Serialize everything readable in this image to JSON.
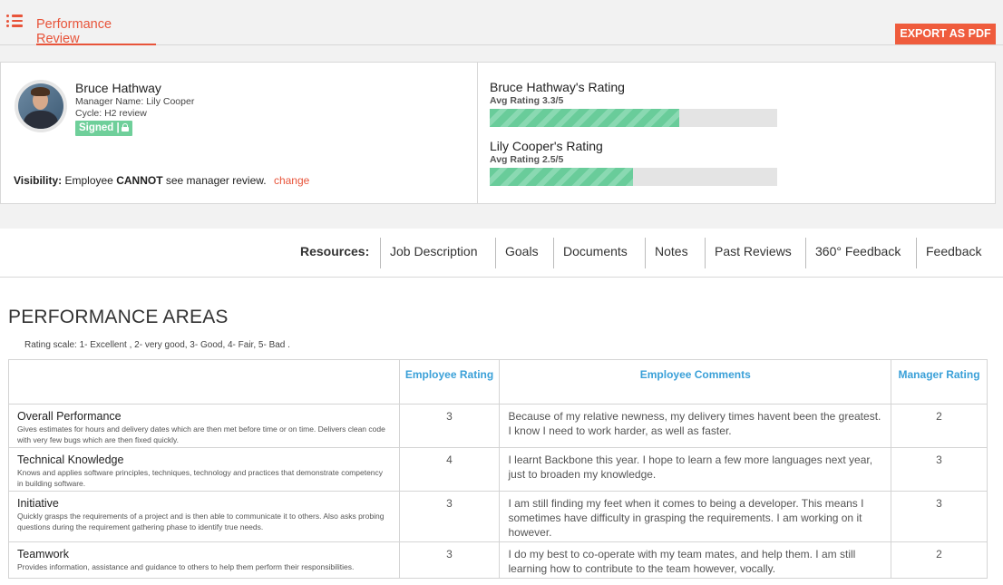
{
  "header": {
    "tab_title": "Performance Review",
    "export_label": "EXPORT AS PDF"
  },
  "profile": {
    "name": "Bruce Hathway",
    "manager": "Manager Name: Lily Cooper",
    "cycle": "Cycle: H2 review",
    "signed_label": "Signed |",
    "visibility_label": "Visibility:",
    "visibility_text_1": "Employee",
    "visibility_strong": "CANNOT",
    "visibility_text_2": "see manager review.",
    "change_label": "change"
  },
  "ratings": [
    {
      "title": "Bruce Hathway's Rating",
      "avg_label": "Avg Rating 3.3/5",
      "value": 3.3,
      "max": 5
    },
    {
      "title": "Lily Cooper's Rating",
      "avg_label": "Avg Rating 2.5/5",
      "value": 2.5,
      "max": 5
    }
  ],
  "resources": {
    "label": "Resources:",
    "items": [
      "Job Description",
      "Goals",
      "Documents",
      "Notes",
      "Past Reviews",
      "360° Feedback",
      "Feedback"
    ]
  },
  "performance": {
    "title": "PERFORMANCE AREAS",
    "scale_note": "Rating scale: 1- Excellent , 2- very good, 3- Good, 4- Fair, 5- Bad .",
    "columns": {
      "employee_rating": "Employee Rating",
      "employee_comments": "Employee Comments",
      "manager_rating": "Manager Rating"
    },
    "rows": [
      {
        "name": "Overall Performance",
        "desc": "Gives estimates for hours and delivery dates which are then met before time or on time. Delivers clean code with very few bugs which are then fixed quickly.",
        "employee_rating": "3",
        "comment": "Because of my relative newness, my delivery times havent been the greatest. I know I need to work harder, as well as faster.",
        "manager_rating": "2"
      },
      {
        "name": "Technical Knowledge",
        "desc": "Knows and applies software principles, techniques, technology and practices that demonstrate competency in building software.",
        "employee_rating": "4",
        "comment": "I learnt Backbone this year. I hope to learn a few more languages next year, just to broaden my knowledge.",
        "manager_rating": "3"
      },
      {
        "name": "Initiative",
        "desc": "Quickly grasps the requirements of a project and is then able to communicate it to others. Also asks probing questions during the requirement gathering phase to identify true needs.",
        "employee_rating": "3",
        "comment": "I am still finding my feet when it comes to being a developer. This means I sometimes have difficulty in grasping the requirements. I am working on it however.",
        "manager_rating": "3"
      },
      {
        "name": "Teamwork",
        "desc": "Provides information, assistance and guidance to others to help them perform their responsibilities.",
        "employee_rating": "3",
        "comment": "I do my best to co-operate with my team mates, and help them. I am still learning how to contribute to the team however, vocally.",
        "manager_rating": "2"
      }
    ]
  },
  "colors": {
    "accent": "#e8543a",
    "link_blue": "#3aa0d8",
    "rating_green": "#69cc9a"
  }
}
